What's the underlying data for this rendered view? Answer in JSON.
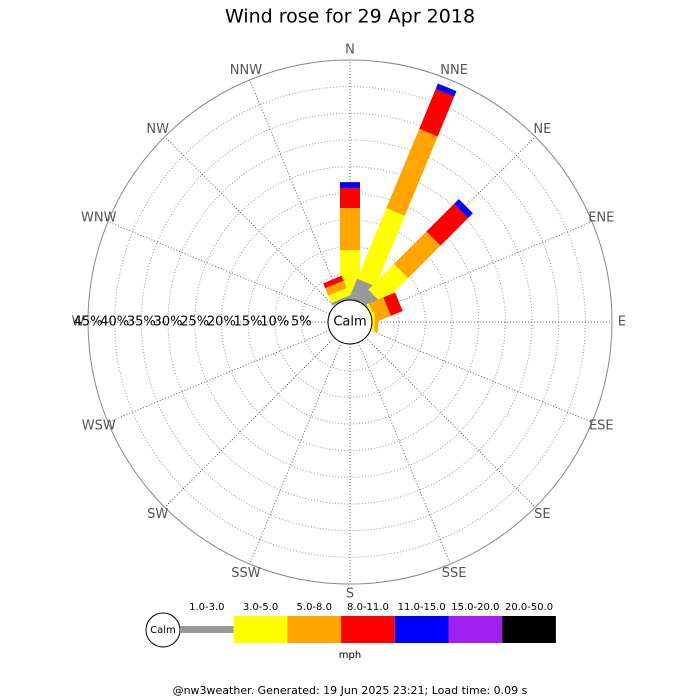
{
  "chart_data": {
    "type": "windrose",
    "title": "Wind rose for 29 Apr 2018",
    "directions": [
      "N",
      "NNE",
      "NE",
      "ENE",
      "E",
      "ESE",
      "SE",
      "SSE",
      "S",
      "SSW",
      "SW",
      "WSW",
      "W",
      "WNW",
      "NW",
      "NNW"
    ],
    "center_label": "Calm",
    "rlim": [
      0,
      45
    ],
    "rticks": [
      {
        "value": 5,
        "label": "5%"
      },
      {
        "value": 10,
        "label": "10%"
      },
      {
        "value": 15,
        "label": "15%"
      },
      {
        "value": 20,
        "label": "20%"
      },
      {
        "value": 25,
        "label": "25%"
      },
      {
        "value": 30,
        "label": "30%"
      },
      {
        "value": 35,
        "label": "35%"
      },
      {
        "value": 40,
        "label": "40%"
      },
      {
        "value": 45,
        "label": "45%"
      }
    ],
    "series": [
      {
        "name": "1.0-3.0",
        "color": "#999999",
        "values": [
          0.75,
          3.9,
          2.6,
          0,
          0,
          0,
          0,
          0,
          0,
          0,
          0,
          0,
          0,
          0,
          0,
          0.5
        ]
      },
      {
        "name": "3.0-5.0",
        "color": "#ffff00",
        "values": [
          8.6,
          14.3,
          6.8,
          0.5,
          0.5,
          0,
          0,
          0,
          0,
          0,
          0,
          0,
          0,
          0,
          0,
          1.5
        ]
      },
      {
        "name": "5.0-8.0",
        "color": "#ffa500",
        "values": [
          7.9,
          16.1,
          8.6,
          2.9,
          0.6,
          0,
          0,
          0,
          0,
          0,
          0,
          0,
          0,
          0,
          0,
          1.5
        ]
      },
      {
        "name": "8.0-11.0",
        "color": "#ff0000",
        "values": [
          3.75,
          8.1,
          7.3,
          2.4,
          0,
          0,
          0,
          0,
          0,
          0,
          0,
          0,
          0,
          0,
          0,
          1.0
        ]
      },
      {
        "name": "11.0-15.0",
        "color": "#0000ff",
        "values": [
          1.1,
          1.1,
          1.3,
          0,
          0,
          0,
          0,
          0,
          0,
          0,
          0,
          0,
          0,
          0,
          0,
          0
        ]
      },
      {
        "name": "15.0-20.0",
        "color": "#a020f0",
        "values": [
          0,
          0,
          0,
          0,
          0,
          0,
          0,
          0,
          0,
          0,
          0,
          0,
          0,
          0,
          0,
          0
        ]
      },
      {
        "name": "20.0-50.0",
        "color": "#000000",
        "values": [
          0,
          0,
          0,
          0,
          0,
          0,
          0,
          0,
          0,
          0,
          0,
          0,
          0,
          0,
          0,
          0
        ]
      }
    ],
    "legend_unit": "mph",
    "footer": "@nw3weather. Generated: 19 Jun 2025 23:21; Load time: 0.09 s"
  }
}
